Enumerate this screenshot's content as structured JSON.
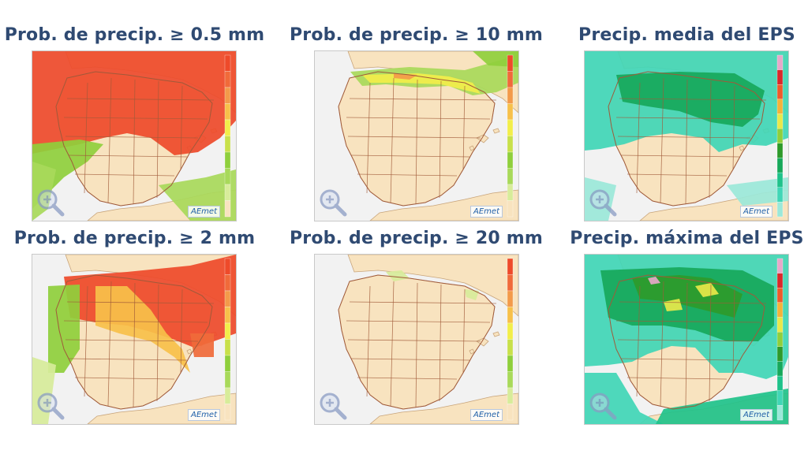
{
  "panels": [
    {
      "title": "Prob. de precip.  ≥ 0.5 mm",
      "scale": "prob",
      "pattern": "p05"
    },
    {
      "title": "Prob. de precip.  ≥ 10 mm",
      "scale": "prob",
      "pattern": "p10"
    },
    {
      "title": "Precip. media del EPS",
      "scale": "amount",
      "pattern": "mean"
    },
    {
      "title": "Prob. de precip.  ≥ 2 mm",
      "scale": "prob",
      "pattern": "p2"
    },
    {
      "title": "Prob. de precip.  ≥ 20 mm",
      "scale": "prob",
      "pattern": "p20"
    },
    {
      "title": "Precip. máxima del EPS",
      "scale": "amount",
      "pattern": "max"
    }
  ],
  "logo_text": "AEmet",
  "icons": {
    "zoom": "zoom-in-icon"
  },
  "colors": {
    "title": "#2f4a72",
    "land": "#f8e3bf",
    "sea": "#f2f2f2",
    "borders": "#a05a3a",
    "prob_scale": [
      "#f8e3bf",
      "#d7ec9a",
      "#a8d95a",
      "#8fcf3c",
      "#c8e04a",
      "#f2ee4a",
      "#f7c04a",
      "#f39a4a",
      "#f06a3a",
      "#ee4a2a"
    ],
    "amount_scale": [
      "#9be8d9",
      "#40d6b6",
      "#1fc28a",
      "#17a85a",
      "#2e9a2a",
      "#8fcf3c",
      "#e8e84a",
      "#f4b23a",
      "#ee5a2a",
      "#d9282a",
      "#e7a8c9"
    ]
  }
}
